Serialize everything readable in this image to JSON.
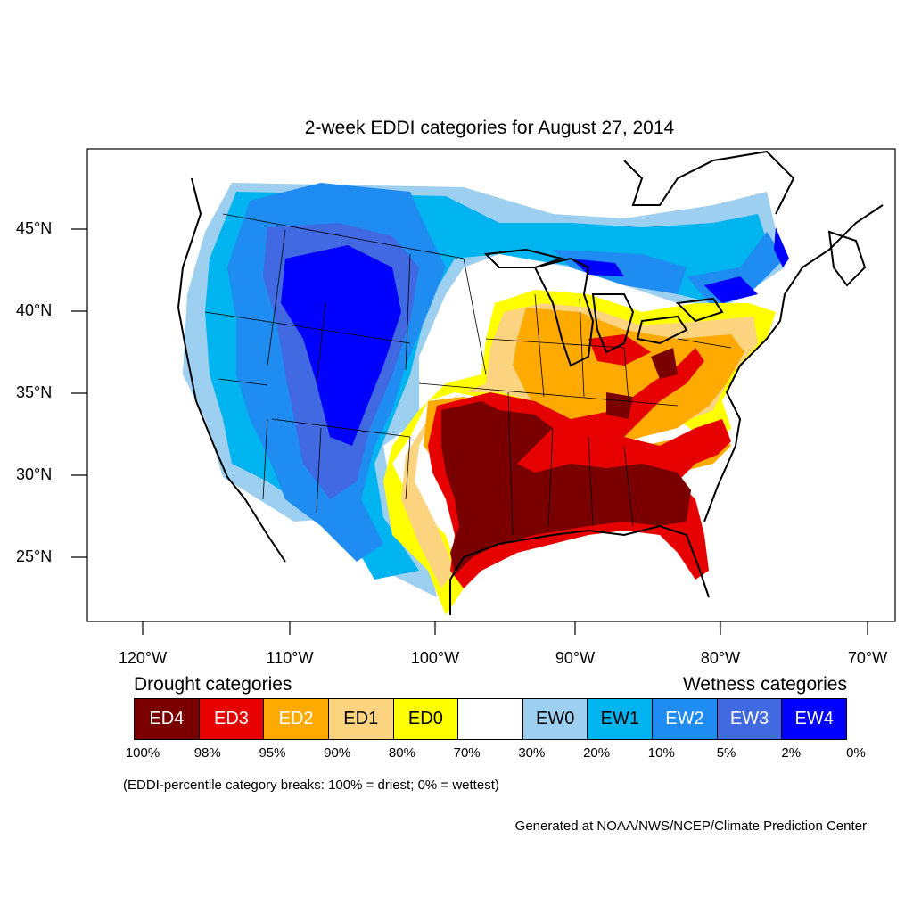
{
  "title": "2-week EDDI categories for August 27, 2014",
  "lat_labels": [
    "45°N",
    "40°N",
    "35°N",
    "30°N",
    "25°N"
  ],
  "lon_labels": [
    "120°W",
    "110°W",
    "100°W",
    "90°W",
    "80°W",
    "70°W"
  ],
  "legend": {
    "drought_heading": "Drought categories",
    "wetness_heading": "Wetness categories",
    "categories": [
      {
        "label": "ED4",
        "color": "#7a0000",
        "text_color": "#ffffff"
      },
      {
        "label": "ED3",
        "color": "#e60000",
        "text_color": "#ffffff"
      },
      {
        "label": "ED2",
        "color": "#ffaa00",
        "text_color": "#ffffff"
      },
      {
        "label": "ED1",
        "color": "#fcd37f",
        "text_color": "#000000"
      },
      {
        "label": "ED0",
        "color": "#ffff00",
        "text_color": "#000000"
      },
      {
        "label": "",
        "color": "#ffffff",
        "text_color": "#000000"
      },
      {
        "label": "EW0",
        "color": "#9ccff0",
        "text_color": "#000000"
      },
      {
        "label": "EW1",
        "color": "#00b4f0",
        "text_color": "#000000"
      },
      {
        "label": "EW2",
        "color": "#1e8cf0",
        "text_color": "#ffffff"
      },
      {
        "label": "EW3",
        "color": "#4169e1",
        "text_color": "#ffffff"
      },
      {
        "label": "EW4",
        "color": "#0000ff",
        "text_color": "#ffffff"
      }
    ],
    "breaks": [
      "100%",
      "98%",
      "95%",
      "90%",
      "80%",
      "70%",
      "30%",
      "20%",
      "10%",
      "5%",
      "2%",
      "0%"
    ]
  },
  "note": "(EDDI-percentile category breaks: 100% = driest; 0% = wettest)",
  "credit": "Generated at NOAA/NWS/NCEP/Climate Prediction Center"
}
